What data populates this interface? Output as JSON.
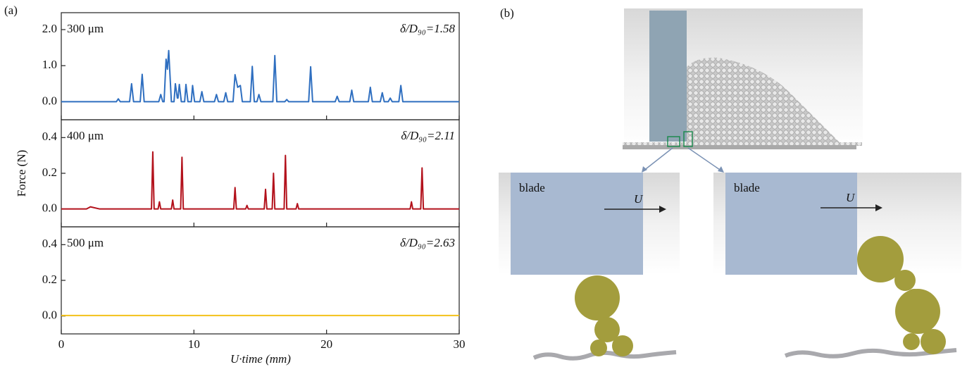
{
  "panel_labels": [
    "(a)",
    "(b)"
  ],
  "axis_labels": {
    "y": "Force (N)",
    "x": "U·time (mm)"
  },
  "chart_data": [
    {
      "type": "line",
      "annotations": [
        "300 μm",
        "δ/D₉₀=1.58"
      ],
      "x": [
        0,
        4.15,
        4.3,
        4.45,
        5.15,
        5.3,
        5.45,
        5.95,
        6.1,
        6.25,
        7.35,
        7.5,
        7.65,
        7.75,
        7.9,
        8.0,
        8.1,
        8.3,
        8.5,
        8.6,
        8.75,
        8.8,
        8.9,
        9.05,
        9.3,
        9.4,
        9.55,
        9.8,
        9.9,
        10.05,
        10.45,
        10.6,
        10.75,
        11.55,
        11.7,
        11.85,
        12.25,
        12.4,
        12.55,
        12.95,
        13.1,
        13.3,
        13.5,
        13.65,
        14.25,
        14.4,
        14.55,
        14.75,
        14.9,
        15.05,
        15.95,
        16.1,
        16.25,
        16.85,
        17.0,
        17.15,
        18.65,
        18.8,
        18.95,
        20.65,
        20.8,
        20.95,
        21.75,
        21.9,
        22.05,
        23.15,
        23.3,
        23.45,
        24.05,
        24.2,
        24.35,
        24.65,
        24.8,
        24.95,
        25.45,
        25.6,
        25.75,
        30
      ],
      "series": [
        {
          "color": "#2f6fc0",
          "values": [
            0,
            0,
            0.08,
            0,
            0,
            0.5,
            0,
            0,
            0.76,
            0,
            0,
            0.2,
            0,
            0,
            1.18,
            0.9,
            1.42,
            0,
            0,
            0.5,
            0.1,
            0.1,
            0.48,
            0,
            0,
            0.48,
            0,
            0,
            0.45,
            0,
            0,
            0.28,
            0,
            0,
            0.2,
            0,
            0,
            0.25,
            0,
            0,
            0.75,
            0.4,
            0.45,
            0,
            0,
            0.98,
            0,
            0,
            0.2,
            0,
            0,
            1.28,
            0,
            0,
            0.06,
            0,
            0,
            0.97,
            0,
            0,
            0.15,
            0,
            0,
            0.32,
            0,
            0,
            0.4,
            0,
            0,
            0.25,
            0,
            0,
            0.1,
            0,
            0,
            0.45,
            0,
            0
          ]
        }
      ],
      "xlim": [
        0,
        30
      ],
      "xticks": [
        0,
        10,
        20,
        30
      ],
      "ylim": [
        -0.5,
        2.47
      ],
      "yticks": [
        {
          "value": 0,
          "label": "0.0"
        },
        {
          "value": 1,
          "label": "1.0"
        },
        {
          "value": 2,
          "label": "2.0"
        }
      ]
    },
    {
      "type": "line",
      "annotations": [
        "400 μm",
        "δ/D₉₀=2.11"
      ],
      "x": [
        0,
        1.9,
        2.2,
        2.9,
        6.8,
        6.9,
        7.0,
        7.3,
        7.4,
        7.5,
        8.3,
        8.4,
        8.5,
        9.0,
        9.1,
        9.2,
        13.0,
        13.1,
        13.2,
        13.9,
        14.0,
        14.1,
        15.3,
        15.4,
        15.5,
        15.9,
        16.0,
        16.1,
        16.8,
        16.9,
        17.0,
        17.7,
        17.8,
        17.9,
        26.3,
        26.4,
        26.5,
        27.1,
        27.2,
        27.3,
        30
      ],
      "series": [
        {
          "color": "#b3121c",
          "values": [
            0,
            0,
            0.012,
            0,
            0,
            0.32,
            0,
            0,
            0.04,
            0,
            0,
            0.05,
            0,
            0,
            0.29,
            0,
            0,
            0.12,
            0,
            0,
            0.02,
            0,
            0,
            0.11,
            0,
            0,
            0.2,
            0,
            0,
            0.3,
            0,
            0,
            0.03,
            0,
            0,
            0.04,
            0,
            0,
            0.23,
            0,
            0
          ]
        }
      ],
      "xlim": [
        0,
        30
      ],
      "xticks": [
        0,
        10,
        20,
        30
      ],
      "ylim": [
        -0.1,
        0.5
      ],
      "yticks": [
        {
          "value": 0,
          "label": "0.0"
        },
        0.2,
        0.4
      ]
    },
    {
      "type": "line",
      "annotations": [
        "500 μm",
        "δ/D₉₀=2.63"
      ],
      "x": [
        0,
        30
      ],
      "series": [
        {
          "color": "#f3c11a",
          "values": [
            0.003,
            0.003
          ]
        }
      ],
      "xlim": [
        0,
        30
      ],
      "xticks": [
        0,
        10,
        20,
        30
      ],
      "ylim": [
        -0.1,
        0.5
      ],
      "yticks": [
        {
          "value": 0,
          "label": "0.0"
        },
        0.2,
        0.4
      ]
    }
  ],
  "diagram": {
    "left": {
      "blade": "blade",
      "velocity": "U"
    },
    "right": {
      "blade": "blade",
      "velocity": "U"
    }
  }
}
